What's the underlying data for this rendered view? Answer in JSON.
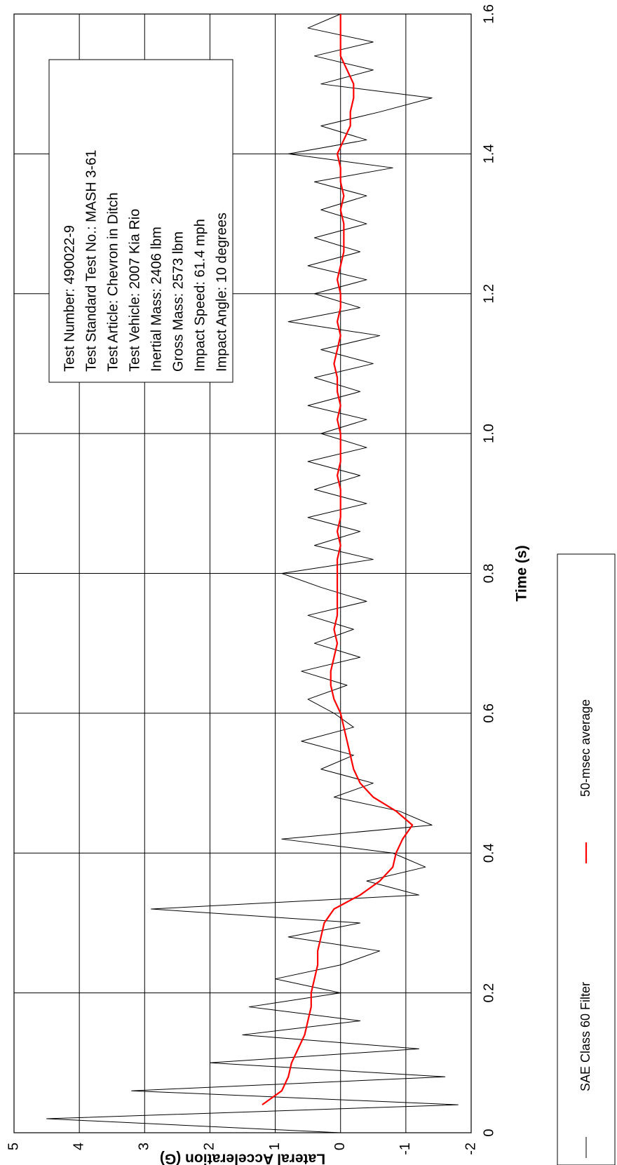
{
  "chart_data": {
    "type": "line",
    "xlabel": "Time (s)",
    "ylabel": "Lateral Acceleration (G)",
    "annotation": [
      "Test Number: 490022-9",
      "Test Standard Test No.: MASH 3-61",
      "Test Article: Chevron in Ditch",
      "Test Vehicle: 2007 Kia Rio",
      "Inertial Mass: 2406 lbm",
      "Gross Mass: 2573 lbm",
      "Impact Speed: 61.4 mph",
      "Impact Angle: 10 degrees"
    ],
    "x": [
      0,
      0.02,
      0.04,
      0.06,
      0.08,
      0.1,
      0.12,
      0.14,
      0.16,
      0.18,
      0.2,
      0.22,
      0.24,
      0.26,
      0.28,
      0.3,
      0.32,
      0.34,
      0.36,
      0.38,
      0.4,
      0.42,
      0.44,
      0.46,
      0.48,
      0.5,
      0.52,
      0.54,
      0.56,
      0.58,
      0.6,
      0.62,
      0.64,
      0.66,
      0.68,
      0.7,
      0.72,
      0.74,
      0.76,
      0.78,
      0.8,
      0.82,
      0.84,
      0.86,
      0.88,
      0.9,
      0.92,
      0.94,
      0.96,
      0.98,
      1.0,
      1.02,
      1.04,
      1.06,
      1.08,
      1.1,
      1.12,
      1.14,
      1.16,
      1.18,
      1.2,
      1.22,
      1.24,
      1.26,
      1.28,
      1.3,
      1.32,
      1.34,
      1.36,
      1.38,
      1.4,
      1.42,
      1.44,
      1.46,
      1.48,
      1.5,
      1.52,
      1.54,
      1.56,
      1.58,
      1.6
    ],
    "series": [
      {
        "name": "SAE Class 60 Filter",
        "color": "#000000",
        "values": [
          0,
          4.5,
          -1.8,
          3.2,
          -1.6,
          2.0,
          -1.2,
          1.5,
          -0.3,
          1.4,
          0.0,
          1.0,
          0.0,
          -0.6,
          0.8,
          -0.3,
          2.9,
          -1.2,
          -0.4,
          -1.3,
          -0.8,
          0.9,
          -1.4,
          -0.9,
          0.1,
          -0.5,
          0.3,
          -0.2,
          0.6,
          -0.2,
          0.1,
          0.5,
          -0.1,
          0.6,
          -0.3,
          0.4,
          -0.2,
          0.5,
          -0.4,
          0.3,
          0.9,
          -0.5,
          0.4,
          -0.3,
          0.5,
          -0.4,
          0.4,
          -0.3,
          0.5,
          -0.4,
          0.3,
          -0.4,
          0.5,
          -0.3,
          0.4,
          -0.5,
          0.3,
          -0.6,
          0.8,
          -0.3,
          0.4,
          -0.4,
          0.5,
          -0.3,
          0.4,
          -0.4,
          0.3,
          -0.4,
          0.4,
          -0.8,
          0.8,
          -0.4,
          0.3,
          -0.6,
          -1.4,
          0.3,
          -0.5,
          0.4,
          -0.5,
          0.5,
          0.0
        ]
      },
      {
        "name": "50-msec average",
        "color": "#ff0000",
        "values": [
          null,
          null,
          1.2,
          0.9,
          0.8,
          0.75,
          0.65,
          0.55,
          0.5,
          0.45,
          0.45,
          0.4,
          0.35,
          0.35,
          0.3,
          0.25,
          0.1,
          -0.3,
          -0.6,
          -0.8,
          -0.85,
          -0.95,
          -1.1,
          -0.85,
          -0.5,
          -0.3,
          -0.2,
          -0.15,
          -0.1,
          -0.05,
          0.0,
          0.1,
          0.15,
          0.15,
          0.1,
          0.05,
          0.1,
          0.05,
          0.05,
          0.05,
          0.05,
          0.05,
          0.0,
          0.05,
          0.0,
          0.0,
          0.0,
          0.05,
          0.0,
          0.0,
          0.0,
          0.05,
          0.0,
          0.05,
          0.05,
          0.1,
          0.05,
          0.0,
          0.05,
          0.0,
          0.0,
          0.05,
          0.0,
          -0.05,
          -0.05,
          -0.05,
          0.0,
          -0.05,
          0.0,
          0.0,
          0.05,
          -0.05,
          -0.15,
          -0.15,
          -0.2,
          -0.2,
          -0.1,
          0.0,
          0.0,
          0.0,
          0.0
        ]
      }
    ],
    "xlim": [
      0,
      1.6
    ],
    "xticks": [
      0,
      0.2,
      0.4,
      0.6,
      0.8,
      {
        "value": 1,
        "label": "1.0"
      },
      1.2,
      1.4,
      1.6
    ],
    "ylim": [
      -2,
      5
    ],
    "yticks": [
      -2,
      -1,
      0,
      1,
      2,
      3,
      4,
      5
    ],
    "grid": true
  }
}
